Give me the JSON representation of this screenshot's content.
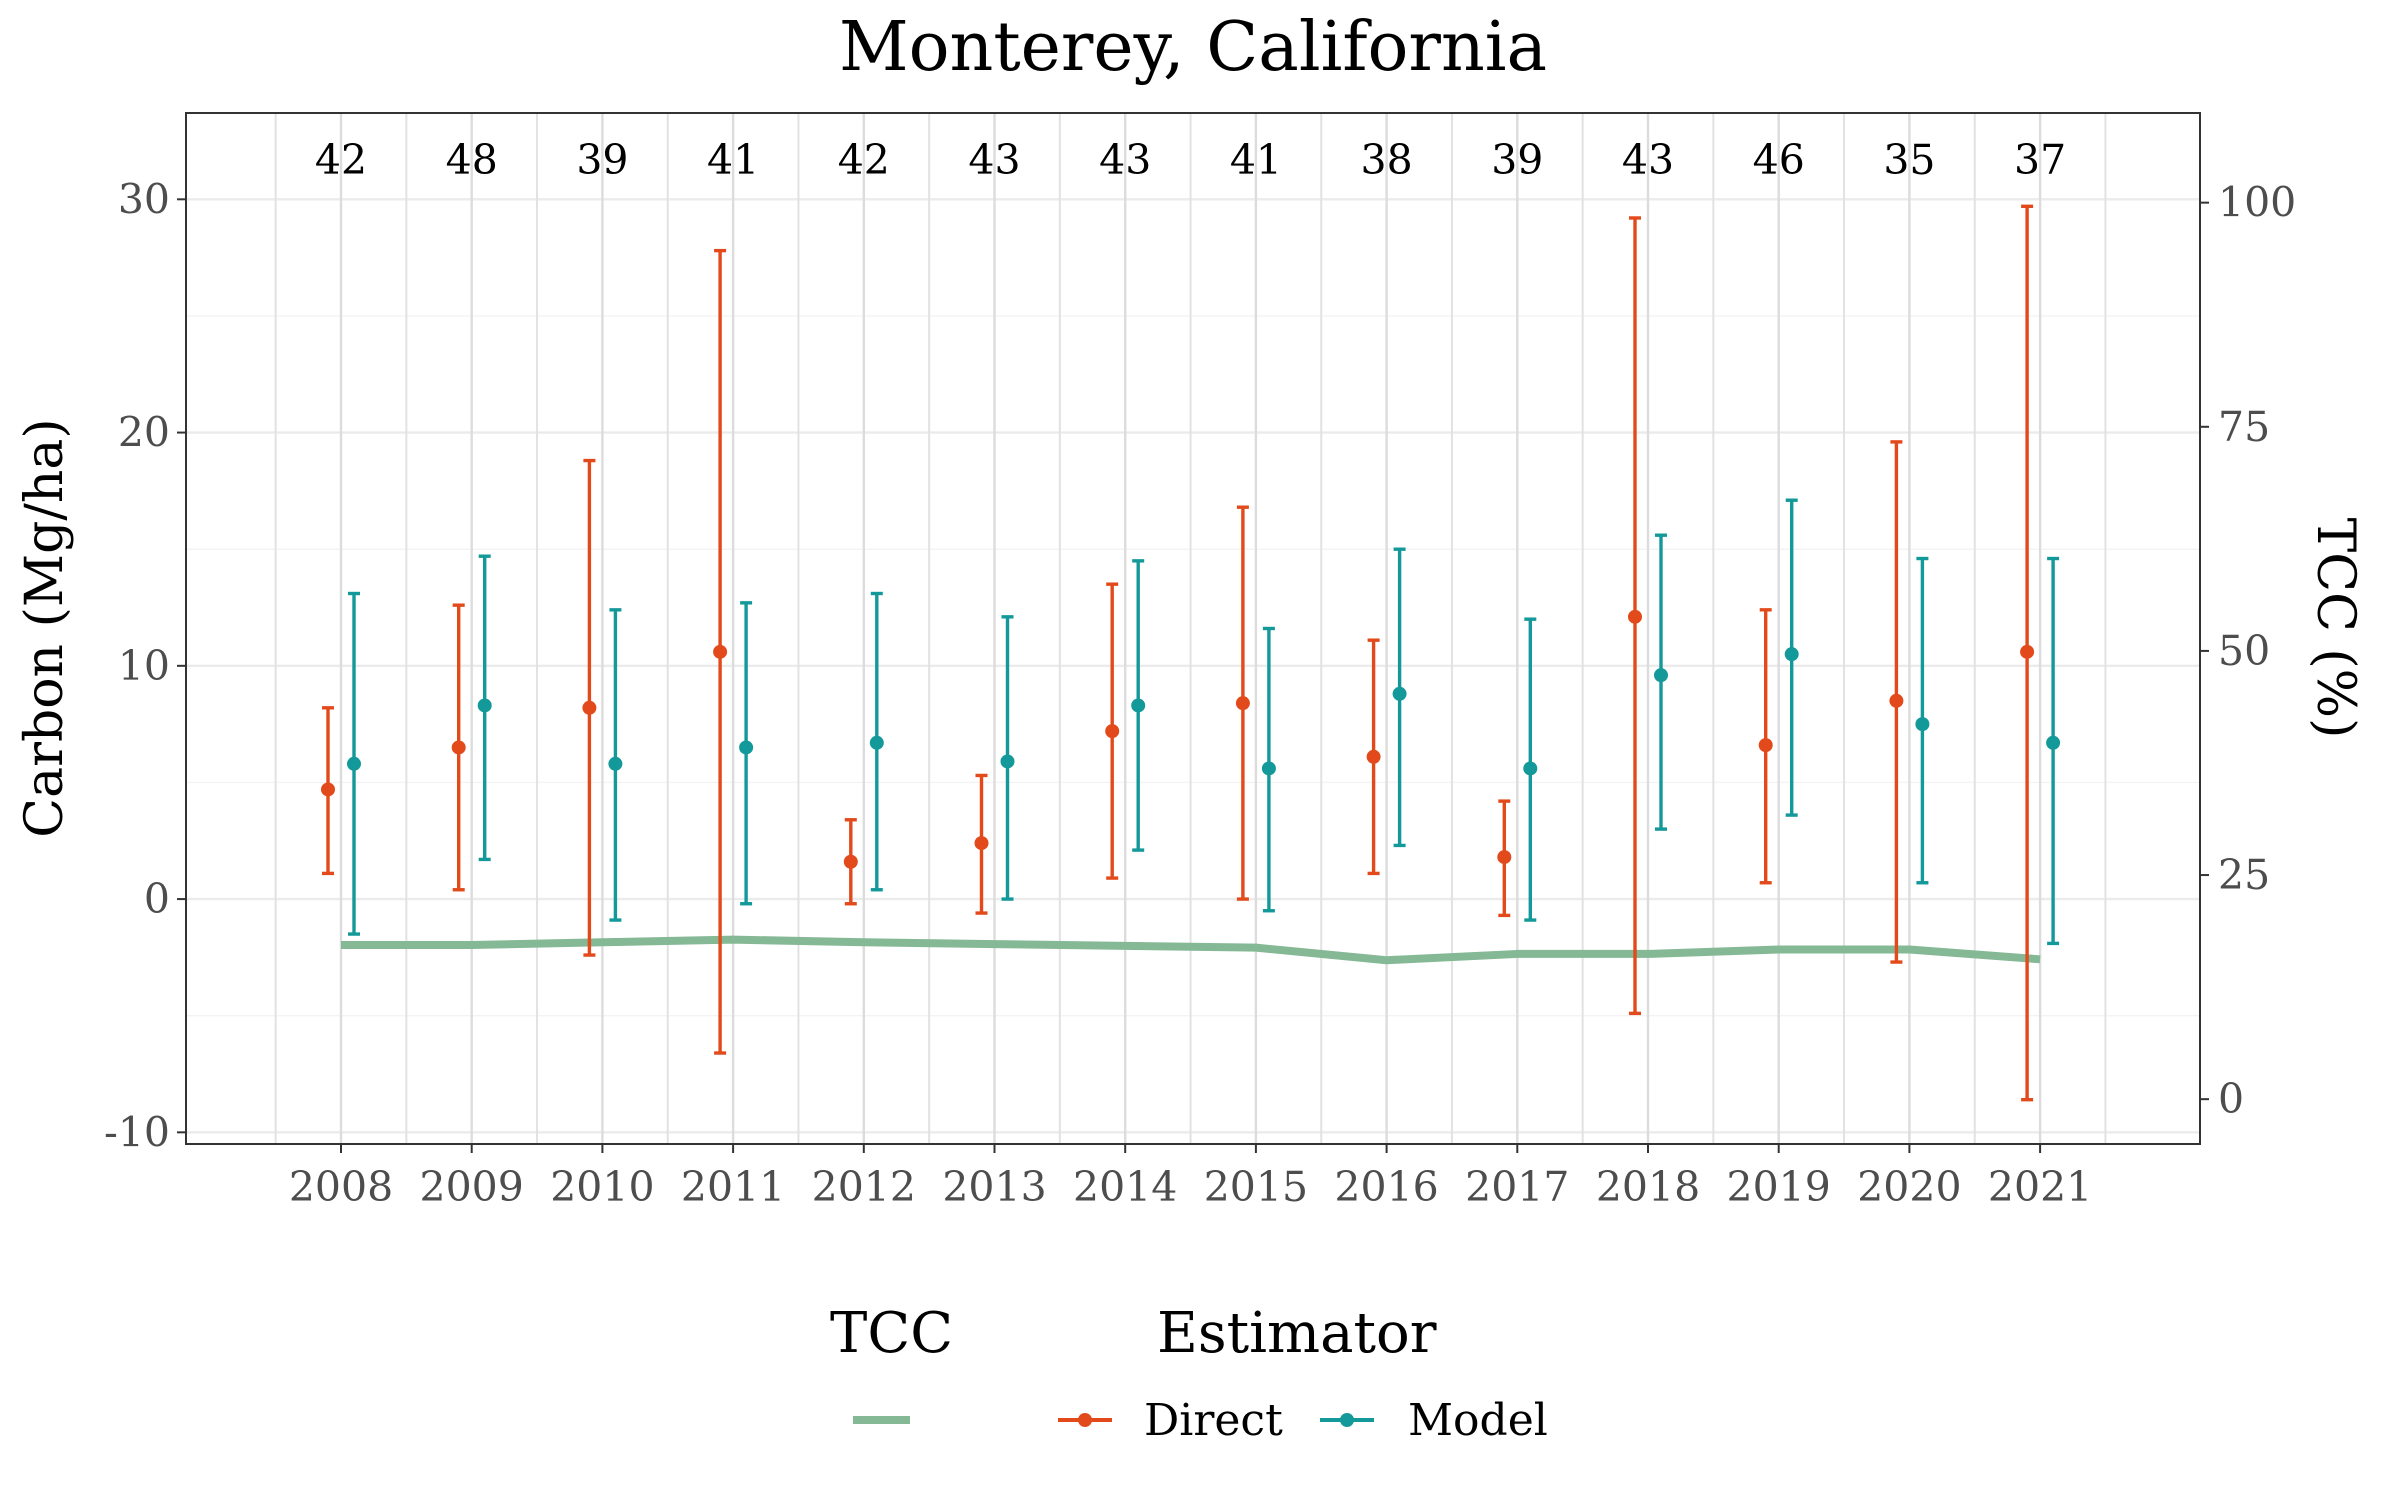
{
  "chart_data": {
    "type": "line",
    "title": "Monterey, California",
    "xlabel": "",
    "ylabel": "Carbon (Mg/ha)",
    "y2label": "TCC (%)",
    "categories": [
      "2008",
      "2009",
      "2010",
      "2011",
      "2012",
      "2013",
      "2014",
      "2015",
      "2016",
      "2017",
      "2018",
      "2019",
      "2020",
      "2021"
    ],
    "counts": [
      "42",
      "48",
      "39",
      "41",
      "42",
      "43",
      "43",
      "41",
      "38",
      "39",
      "43",
      "46",
      "35",
      "37"
    ],
    "ylim": [
      -10.5,
      33.7
    ],
    "y2lim": [
      -5,
      110
    ],
    "yticks": [
      -10,
      0,
      10,
      20,
      30
    ],
    "y2ticks": [
      0,
      25,
      50,
      75,
      100
    ],
    "grid": true,
    "legend_position": "bottom",
    "series": [
      {
        "name": "Direct",
        "color": "#E34A1B",
        "mean": [
          4.7,
          6.5,
          8.2,
          10.6,
          1.6,
          2.4,
          7.2,
          8.4,
          6.1,
          1.8,
          12.1,
          6.6,
          8.5,
          10.6
        ],
        "lower": [
          1.1,
          0.4,
          -2.4,
          -6.6,
          -0.2,
          -0.6,
          0.9,
          0.0,
          1.1,
          -0.7,
          -4.9,
          0.7,
          -2.7,
          -8.6
        ],
        "upper": [
          8.2,
          12.6,
          18.8,
          27.8,
          3.4,
          5.3,
          13.5,
          16.8,
          11.1,
          4.2,
          29.2,
          12.4,
          19.6,
          29.7
        ]
      },
      {
        "name": "Model",
        "color": "#14999A",
        "mean": [
          5.8,
          8.3,
          5.8,
          6.5,
          6.7,
          5.9,
          8.3,
          5.6,
          8.8,
          5.6,
          9.6,
          10.5,
          7.5,
          6.7
        ],
        "lower": [
          -1.5,
          1.7,
          -0.9,
          -0.2,
          0.4,
          0.0,
          2.1,
          -0.5,
          2.3,
          -0.9,
          3.0,
          3.6,
          0.7,
          -1.9
        ],
        "upper": [
          13.1,
          14.7,
          12.4,
          12.7,
          13.1,
          12.1,
          14.5,
          11.6,
          15.0,
          12.0,
          15.6,
          17.1,
          14.6,
          14.6
        ]
      }
    ],
    "tcc": {
      "name": "TCC",
      "color": "#85B895",
      "values": [
        17.2,
        17.2,
        17.5,
        17.8,
        17.5,
        17.3,
        17.1,
        16.9,
        15.5,
        16.2,
        16.2,
        16.7,
        16.7,
        15.6
      ]
    },
    "legend": {
      "tcc_title": "TCC",
      "estimator_title": "Estimator",
      "items": [
        "Direct",
        "Model"
      ]
    }
  }
}
